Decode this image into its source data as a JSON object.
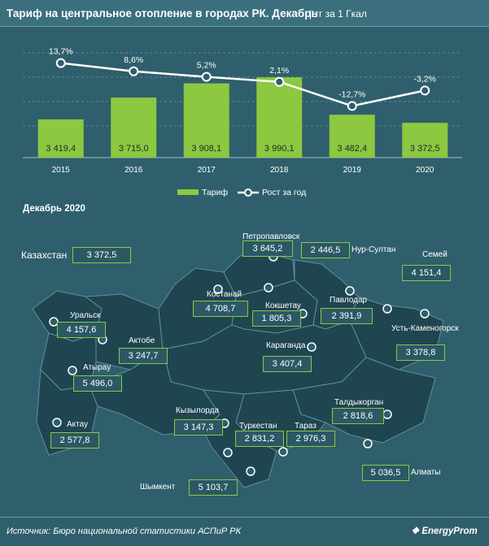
{
  "header": {
    "title": "Тариф на центральное отопление в городах РК. Декабрь",
    "unit": "| тг за 1 Гкал"
  },
  "chart_data": {
    "type": "bar",
    "categories": [
      "2015",
      "2016",
      "2017",
      "2018",
      "2019",
      "2020"
    ],
    "series": [
      {
        "name": "Тариф",
        "values": [
          3419.4,
          3715.0,
          3908.1,
          3990.1,
          3482.4,
          3372.5
        ],
        "labels": [
          "3 419,4",
          "3 715,0",
          "3 908,1",
          "3 990,1",
          "3 482,4",
          "3 372,5"
        ],
        "color": "#8cc840"
      },
      {
        "name": "Рост за год",
        "chart_type": "line",
        "values": [
          13.7,
          8.6,
          5.2,
          2.1,
          -12.7,
          -3.2
        ],
        "labels": [
          "13,7%",
          "8,6%",
          "5,2%",
          "2,1%",
          "-12,7%",
          "-3,2%"
        ],
        "color": "#ffffff"
      }
    ],
    "legend": [
      "Тариф",
      "Рост за год"
    ],
    "legend_position": "bottom",
    "grid": "dashed horizontal"
  },
  "map": {
    "title": "Декабрь 2020",
    "kazakhstan_label": "Казахстан",
    "kazakhstan_value": "3 372,5",
    "cities": [
      {
        "name": "Петропавловск",
        "value": "3 645,2"
      },
      {
        "name": "Нур-Султан",
        "value": "2 446,5"
      },
      {
        "name": "Семей",
        "value": "4 151,4"
      },
      {
        "name": "Костанай",
        "value": "4 708,7"
      },
      {
        "name": "Кокшетау",
        "value": "1 805,3"
      },
      {
        "name": "Павлодар",
        "value": "2 391,9"
      },
      {
        "name": "Уральск",
        "value": "4 157,6"
      },
      {
        "name": "Усть-Каменогорск",
        "value": "3 378,8"
      },
      {
        "name": "Актобе",
        "value": "3 247,7"
      },
      {
        "name": "Караганда",
        "value": "3 407,4"
      },
      {
        "name": "Атырау",
        "value": "5 496,0"
      },
      {
        "name": "Талдыкорган",
        "value": "2 818,6"
      },
      {
        "name": "Кызылорда",
        "value": "3 147,3"
      },
      {
        "name": "Актау",
        "value": "2 577,8"
      },
      {
        "name": "Туркестан",
        "value": "2 831,2"
      },
      {
        "name": "Тараз",
        "value": "2 976,3"
      },
      {
        "name": "Алматы",
        "value": "5 036,5"
      },
      {
        "name": "Шымкент",
        "value": "5 103,7"
      }
    ]
  },
  "footer": {
    "source": "Источник: Бюро национальной статистики АСПиР РК",
    "logo": "EnergyProm"
  },
  "colors": {
    "background": "#2f5f6c",
    "bar": "#8cc840",
    "line": "#ffffff",
    "region": "#1f4550"
  }
}
